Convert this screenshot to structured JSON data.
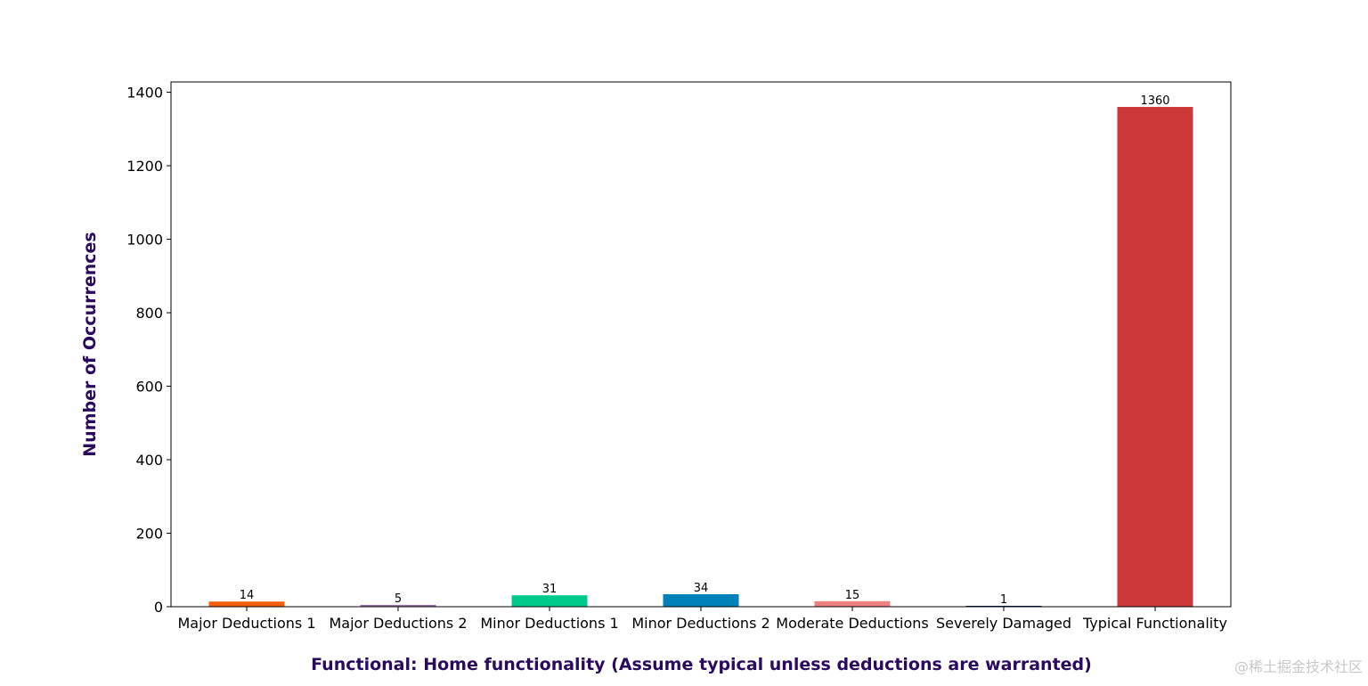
{
  "chart_data": {
    "type": "bar",
    "title": "",
    "xlabel": "Functional: Home functionality (Assume typical unless deductions are warranted)",
    "ylabel": "Number of Occurrences",
    "categories": [
      "Major Deductions 1",
      "Major Deductions 2",
      "Minor Deductions 1",
      "Minor Deductions 2",
      "Moderate Deductions",
      "Severely Damaged",
      "Typical Functionality"
    ],
    "values": [
      14,
      5,
      31,
      34,
      15,
      1,
      1360
    ],
    "colors": [
      "#f4600c",
      "#9b72b0",
      "#00c98c",
      "#0081b8",
      "#f08080",
      "#0b1a4f",
      "#cc3737"
    ],
    "ylim": [
      0,
      1428
    ],
    "yticks": [
      0,
      200,
      400,
      600,
      800,
      1000,
      1200,
      1400
    ],
    "grid": false,
    "axis_label_color": "#2a0a5e"
  },
  "watermark": "@稀土掘金技术社区"
}
